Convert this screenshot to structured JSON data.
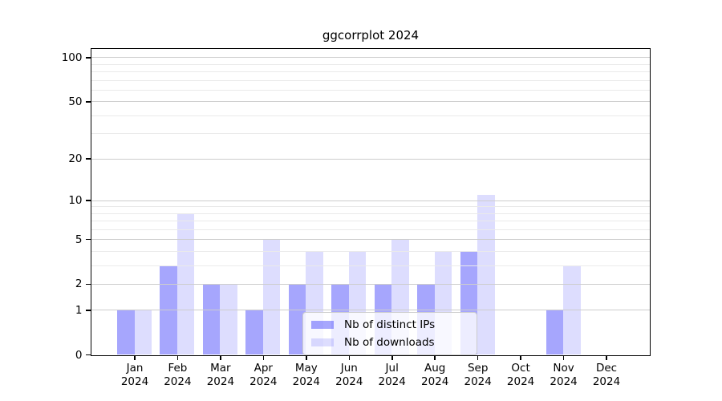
{
  "chart_data": {
    "type": "bar",
    "title": "ggcorrplot 2024",
    "categories": [
      "Jan 2024",
      "Feb 2024",
      "Mar 2024",
      "Apr 2024",
      "May 2024",
      "Jun 2024",
      "Jul 2024",
      "Aug 2024",
      "Sep 2024",
      "Oct 2024",
      "Nov 2024",
      "Dec 2024"
    ],
    "series": [
      {
        "name": "Nb of distinct IPs",
        "color": "rgba(0,0,250,0.35)",
        "values": [
          1,
          3,
          2,
          1,
          2,
          2,
          2,
          2,
          4,
          0,
          1,
          0
        ]
      },
      {
        "name": "Nb of downloads",
        "color": "rgba(0,0,250,0.135)",
        "values": [
          1,
          8,
          2,
          5,
          4,
          4,
          5,
          4,
          11,
          0,
          3,
          0
        ]
      }
    ],
    "xlabel": "",
    "ylabel": "",
    "yscale": "log1p",
    "ylim": [
      0,
      114
    ],
    "yaxis": {
      "ticks": [
        {
          "value": 0,
          "label": "0"
        },
        {
          "value": 1,
          "label": "1"
        },
        {
          "value": 2,
          "label": "2"
        },
        {
          "value": 5,
          "label": "5"
        },
        {
          "value": 10,
          "label": "10"
        },
        {
          "value": 20,
          "label": "20"
        },
        {
          "value": 50,
          "label": "50"
        },
        {
          "value": 100,
          "label": "100"
        }
      ],
      "minor_gridlines": [
        3,
        4,
        6,
        7,
        8,
        9,
        30,
        40,
        60,
        70,
        80,
        90
      ]
    },
    "grid": "on",
    "legend_position": "lower center inside"
  },
  "colors": {
    "background": "#ffffff",
    "axis": "#000000",
    "major_grid": "#cdcdcd",
    "minor_grid": "#eaeaea",
    "legend_border": "#cccccc"
  }
}
